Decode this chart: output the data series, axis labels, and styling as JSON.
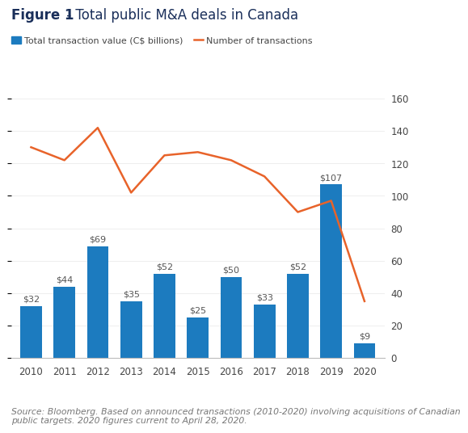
{
  "years": [
    2010,
    2011,
    2012,
    2013,
    2014,
    2015,
    2016,
    2017,
    2018,
    2019,
    2020
  ],
  "transaction_values": [
    32,
    44,
    69,
    35,
    52,
    25,
    50,
    33,
    52,
    107,
    9
  ],
  "num_transactions": [
    130,
    122,
    142,
    102,
    125,
    127,
    122,
    112,
    90,
    97,
    35
  ],
  "bar_color": "#1c7bbf",
  "line_color": "#e8632a",
  "bar_labels": [
    "$32",
    "$44",
    "$69",
    "$35",
    "$52",
    "$25",
    "$50",
    "$33",
    "$52",
    "$107",
    "$9"
  ],
  "title_bold": "Figure 1",
  "title_rest": " - Total public M&A deals in Canada",
  "legend_bar": "Total transaction value (C$ billions)",
  "legend_line": "Number of transactions",
  "ylim_left": [
    0,
    160
  ],
  "ylim_right": [
    0,
    160
  ],
  "source_text": "Source: Bloomberg. Based on announced transactions (2010-2020) involving acquisitions of Canadian\npublic targets. 2020 figures current to April 28, 2020.",
  "background_color": "#ffffff",
  "title_color": "#1a2f5a",
  "bar_label_fontsize": 8.0,
  "title_fontsize": 12,
  "axis_fontsize": 8.5,
  "source_fontsize": 7.8,
  "label_color": "#555555"
}
